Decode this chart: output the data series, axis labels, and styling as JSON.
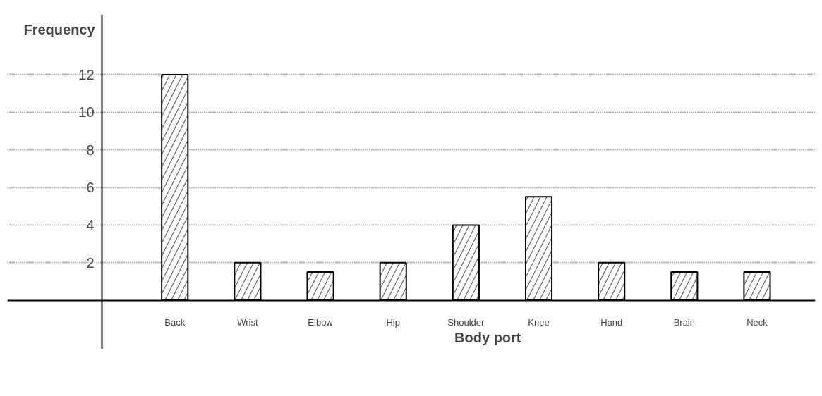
{
  "chart_data": {
    "type": "bar",
    "xlabel": "Body port",
    "ylabel": "Frequency",
    "categories": [
      "Back",
      "Wrist",
      "Elbow",
      "Hip",
      "Shoulder",
      "Knee",
      "Hand",
      "Brain",
      "Neck"
    ],
    "values": [
      12,
      2,
      1.5,
      2,
      4,
      5.5,
      2,
      1.5,
      1.5
    ],
    "color": "#ffffff",
    "ylim": [
      -2.6,
      15.2
    ],
    "yticks": [
      2,
      4,
      6,
      8,
      10,
      12
    ],
    "grid": "y"
  }
}
